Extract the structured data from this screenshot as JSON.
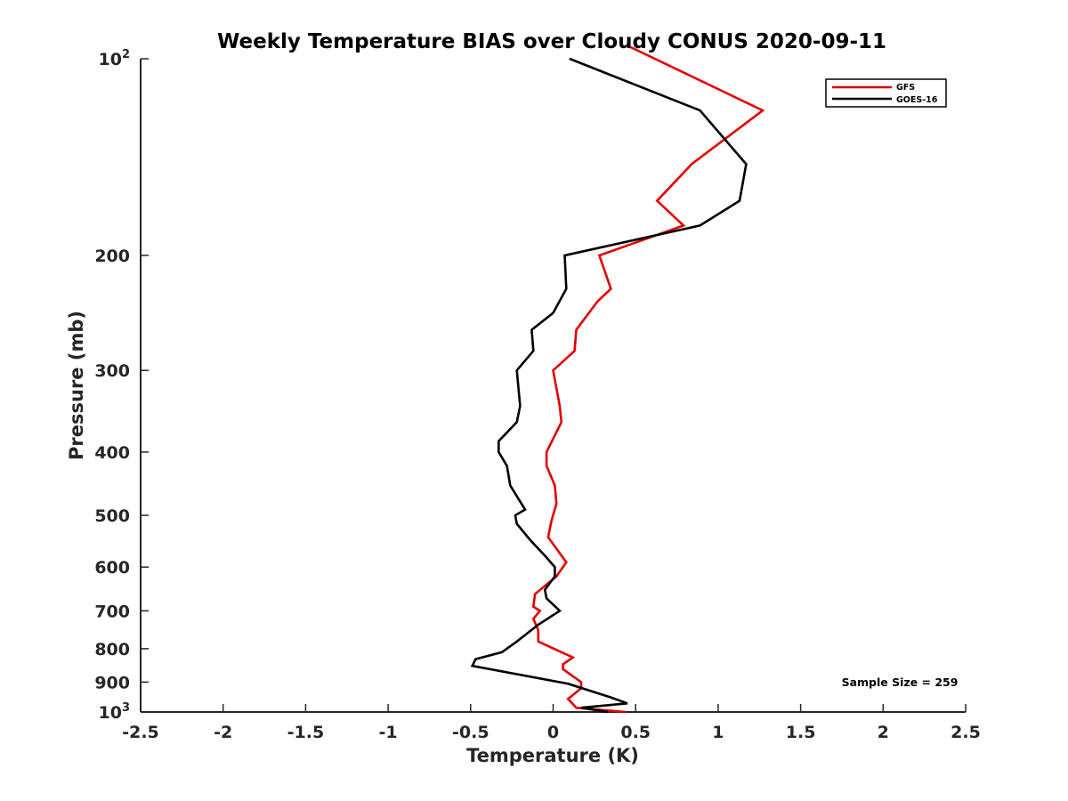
{
  "chart_data": {
    "type": "line",
    "title": "Weekly Temperature BIAS over Cloudy CONUS 2020-09-11",
    "xlabel": "Temperature (K)",
    "ylabel": "Pressure (mb)",
    "xlim": [
      -2.5,
      2.5
    ],
    "ylim": [
      100,
      1000
    ],
    "y_scale": "log",
    "y_reversed": true,
    "grid": false,
    "legend_position": "top-right",
    "x_ticks": [
      "-2.5",
      "-2",
      "-1.5",
      "-1",
      "-0.5",
      "0",
      "0.5",
      "1",
      "1.5",
      "2",
      "2.5"
    ],
    "x_tick_values": [
      -2.5,
      -2,
      -1.5,
      -1,
      -0.5,
      0,
      0.5,
      1,
      1.5,
      2,
      2.5
    ],
    "y_ticks": [
      {
        "value": 100,
        "base": "10",
        "exp": "2"
      },
      {
        "value": 200,
        "label": "200"
      },
      {
        "value": 300,
        "label": "300"
      },
      {
        "value": 400,
        "label": "400"
      },
      {
        "value": 500,
        "label": "500"
      },
      {
        "value": 600,
        "label": "600"
      },
      {
        "value": 700,
        "label": "700"
      },
      {
        "value": 800,
        "label": "800"
      },
      {
        "value": 900,
        "label": "900"
      },
      {
        "value": 1000,
        "base": "10",
        "exp": "3"
      }
    ],
    "series": [
      {
        "name": "GFS",
        "color": "#e00000",
        "points": [
          [
            0.47,
            96
          ],
          [
            1.27,
            120
          ],
          [
            0.84,
            145
          ],
          [
            0.63,
            165
          ],
          [
            0.79,
            180
          ],
          [
            0.28,
            200
          ],
          [
            0.35,
            225
          ],
          [
            0.27,
            235
          ],
          [
            0.14,
            260
          ],
          [
            0.13,
            280
          ],
          [
            0.0,
            300
          ],
          [
            0.04,
            340
          ],
          [
            0.05,
            360
          ],
          [
            -0.04,
            400
          ],
          [
            -0.04,
            420
          ],
          [
            0.01,
            450
          ],
          [
            0.02,
            480
          ],
          [
            -0.01,
            510
          ],
          [
            -0.03,
            540
          ],
          [
            0.08,
            590
          ],
          [
            0.02,
            620
          ],
          [
            -0.11,
            660
          ],
          [
            -0.12,
            690
          ],
          [
            -0.08,
            700
          ],
          [
            -0.12,
            720
          ],
          [
            -0.09,
            750
          ],
          [
            -0.09,
            780
          ],
          [
            0.12,
            825
          ],
          [
            0.06,
            845
          ],
          [
            0.06,
            860
          ],
          [
            0.17,
            900
          ],
          [
            0.17,
            920
          ],
          [
            0.09,
            955
          ],
          [
            0.14,
            985
          ],
          [
            0.44,
            1000
          ]
        ]
      },
      {
        "name": "GOES-16",
        "color": "#000000",
        "points": [
          [
            0.1,
            100
          ],
          [
            0.89,
            120
          ],
          [
            1.17,
            145
          ],
          [
            1.13,
            165
          ],
          [
            0.89,
            180
          ],
          [
            0.07,
            200
          ],
          [
            0.08,
            225
          ],
          [
            0.0,
            245
          ],
          [
            -0.13,
            260
          ],
          [
            -0.12,
            280
          ],
          [
            -0.22,
            300
          ],
          [
            -0.2,
            340
          ],
          [
            -0.22,
            360
          ],
          [
            -0.33,
            385
          ],
          [
            -0.33,
            400
          ],
          [
            -0.28,
            420
          ],
          [
            -0.26,
            450
          ],
          [
            -0.17,
            490
          ],
          [
            -0.23,
            500
          ],
          [
            -0.22,
            515
          ],
          [
            -0.14,
            545
          ],
          [
            -0.04,
            580
          ],
          [
            0.01,
            600
          ],
          [
            0.01,
            620
          ],
          [
            -0.05,
            650
          ],
          [
            -0.04,
            670
          ],
          [
            0.04,
            700
          ],
          [
            -0.09,
            735
          ],
          [
            -0.22,
            780
          ],
          [
            -0.31,
            810
          ],
          [
            -0.47,
            830
          ],
          [
            -0.49,
            850
          ],
          [
            0.09,
            905
          ],
          [
            0.35,
            950
          ],
          [
            0.45,
            970
          ],
          [
            0.17,
            985
          ],
          [
            0.33,
            1000
          ]
        ]
      }
    ],
    "annotation": "Sample Size = 259"
  }
}
